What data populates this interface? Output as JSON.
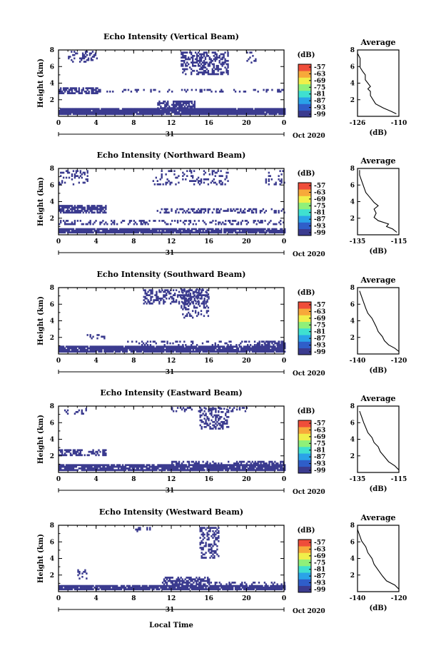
{
  "figure": {
    "footer_label": "Local Time",
    "date_label": "Oct 2020",
    "day_label": "31"
  },
  "colorbar": {
    "unit": "(dB)",
    "tick_labels": [
      "-57",
      "-63",
      "-69",
      "-75",
      "-81",
      "-87",
      "-93",
      "-99"
    ],
    "colors": [
      "#3b3b8f",
      "#2f5ec9",
      "#2aa3e8",
      "#3fe0d0",
      "#8ff07a",
      "#f0ef4a",
      "#f7a93a",
      "#ef4d3a"
    ]
  },
  "chart_data": [
    {
      "type": "heatmap",
      "title": "Echo Intensity (Vertical Beam)",
      "ylabel": "Height (km)",
      "xlim": [
        0,
        24
      ],
      "ylim": [
        0,
        8
      ],
      "x_tick_labels": [
        "0",
        "4",
        "8",
        "12",
        "16",
        "20",
        "0"
      ],
      "y_tick_labels": [
        "2",
        "4",
        "6",
        "8"
      ],
      "avg_profile": {
        "title": "Average",
        "xlabel": "(dB)",
        "xlim": [
          -126,
          -110
        ],
        "x_tick_labels": [
          "-126",
          "-110"
        ],
        "y_tick_labels": [
          "2",
          "4",
          "6",
          "8"
        ],
        "points": [
          [
            -111,
            0.3
          ],
          [
            -113,
            0.6
          ],
          [
            -116,
            1.0
          ],
          [
            -119,
            1.5
          ],
          [
            -120,
            2.0
          ],
          [
            -121,
            2.5
          ],
          [
            -121,
            3.0
          ],
          [
            -122,
            3.3
          ],
          [
            -121,
            3.6
          ],
          [
            -122,
            4.0
          ],
          [
            -123,
            4.4
          ],
          [
            -123,
            5.0
          ],
          [
            -124,
            5.4
          ],
          [
            -125,
            5.9
          ],
          [
            -125,
            6.4
          ],
          [
            -125,
            7.0
          ],
          [
            -126,
            7.6
          ]
        ]
      }
    },
    {
      "type": "heatmap",
      "title": "Echo Intensity (Northward Beam)",
      "ylabel": "Height (km)",
      "xlim": [
        0,
        24
      ],
      "ylim": [
        0,
        8
      ],
      "x_tick_labels": [
        "0",
        "4",
        "8",
        "12",
        "16",
        "20",
        "0"
      ],
      "y_tick_labels": [
        "2",
        "4",
        "6",
        "8"
      ],
      "avg_profile": {
        "title": "Average",
        "xlabel": "(dB)",
        "xlim": [
          -135,
          -115
        ],
        "x_tick_labels": [
          "-135",
          "-115"
        ],
        "y_tick_labels": [
          "2",
          "4",
          "6",
          "8"
        ],
        "points": [
          [
            -116,
            0.3
          ],
          [
            -118,
            0.7
          ],
          [
            -121,
            1.0
          ],
          [
            -120,
            1.3
          ],
          [
            -125,
            1.7
          ],
          [
            -127,
            2.1
          ],
          [
            -126,
            2.6
          ],
          [
            -127,
            3.1
          ],
          [
            -125,
            3.5
          ],
          [
            -127,
            3.9
          ],
          [
            -129,
            4.5
          ],
          [
            -131,
            5.1
          ],
          [
            -132,
            5.8
          ],
          [
            -133,
            6.5
          ],
          [
            -134,
            7.2
          ],
          [
            -134,
            7.8
          ]
        ]
      }
    },
    {
      "type": "heatmap",
      "title": "Echo Intensity (Southward Beam)",
      "ylabel": "Height (km)",
      "xlim": [
        0,
        24
      ],
      "ylim": [
        0,
        8
      ],
      "x_tick_labels": [
        "0",
        "4",
        "8",
        "12",
        "16",
        "20",
        "0"
      ],
      "y_tick_labels": [
        "2",
        "4",
        "6",
        "8"
      ],
      "avg_profile": {
        "title": "Average",
        "xlabel": "(dB)",
        "xlim": [
          -140,
          -120
        ],
        "x_tick_labels": [
          "-140",
          "-120"
        ],
        "y_tick_labels": [
          "2",
          "4",
          "6",
          "8"
        ],
        "points": [
          [
            -120,
            0.3
          ],
          [
            -122,
            0.7
          ],
          [
            -125,
            1.1
          ],
          [
            -127,
            1.6
          ],
          [
            -128,
            2.1
          ],
          [
            -130,
            2.7
          ],
          [
            -131,
            3.3
          ],
          [
            -132,
            3.8
          ],
          [
            -133,
            4.3
          ],
          [
            -135,
            4.9
          ],
          [
            -136,
            5.5
          ],
          [
            -137,
            6.2
          ],
          [
            -138,
            6.9
          ],
          [
            -139,
            7.6
          ]
        ]
      }
    },
    {
      "type": "heatmap",
      "title": "Echo Intensity (Eastward Beam)",
      "ylabel": "Height (km)",
      "xlim": [
        0,
        24
      ],
      "ylim": [
        0,
        8
      ],
      "x_tick_labels": [
        "0",
        "4",
        "8",
        "12",
        "16",
        "20",
        "0"
      ],
      "y_tick_labels": [
        "2",
        "4",
        "6",
        "8"
      ],
      "avg_profile": {
        "title": "Average",
        "xlabel": "(dB)",
        "xlim": [
          -135,
          -115
        ],
        "x_tick_labels": [
          "-135",
          "-115"
        ],
        "y_tick_labels": [
          "2",
          "4",
          "6",
          "8"
        ],
        "points": [
          [
            -115,
            0.3
          ],
          [
            -117,
            0.8
          ],
          [
            -120,
            1.3
          ],
          [
            -122,
            1.9
          ],
          [
            -124,
            2.5
          ],
          [
            -125,
            3.1
          ],
          [
            -127,
            3.6
          ],
          [
            -128,
            4.2
          ],
          [
            -130,
            4.8
          ],
          [
            -131,
            5.4
          ],
          [
            -132,
            6.0
          ],
          [
            -133,
            6.7
          ],
          [
            -134,
            7.4
          ]
        ]
      }
    },
    {
      "type": "heatmap",
      "title": "Echo Intensity (Westward Beam)",
      "ylabel": "Height (km)",
      "xlim": [
        0,
        24
      ],
      "ylim": [
        0,
        8
      ],
      "x_tick_labels": [
        "0",
        "4",
        "8",
        "12",
        "16",
        "20",
        "0"
      ],
      "y_tick_labels": [
        "2",
        "4",
        "6",
        "8"
      ],
      "avg_profile": {
        "title": "Average",
        "xlabel": "(dB)",
        "xlim": [
          -140,
          -120
        ],
        "x_tick_labels": [
          "-140",
          "-120"
        ],
        "y_tick_labels": [
          "2",
          "4",
          "6",
          "8"
        ],
        "points": [
          [
            -120,
            0.3
          ],
          [
            -122,
            0.8
          ],
          [
            -126,
            1.3
          ],
          [
            -128,
            1.9
          ],
          [
            -130,
            2.6
          ],
          [
            -132,
            3.3
          ],
          [
            -133,
            4.0
          ],
          [
            -135,
            4.7
          ],
          [
            -136,
            5.4
          ],
          [
            -138,
            6.1
          ],
          [
            -139,
            6.8
          ],
          [
            -140,
            7.5
          ]
        ]
      }
    }
  ]
}
